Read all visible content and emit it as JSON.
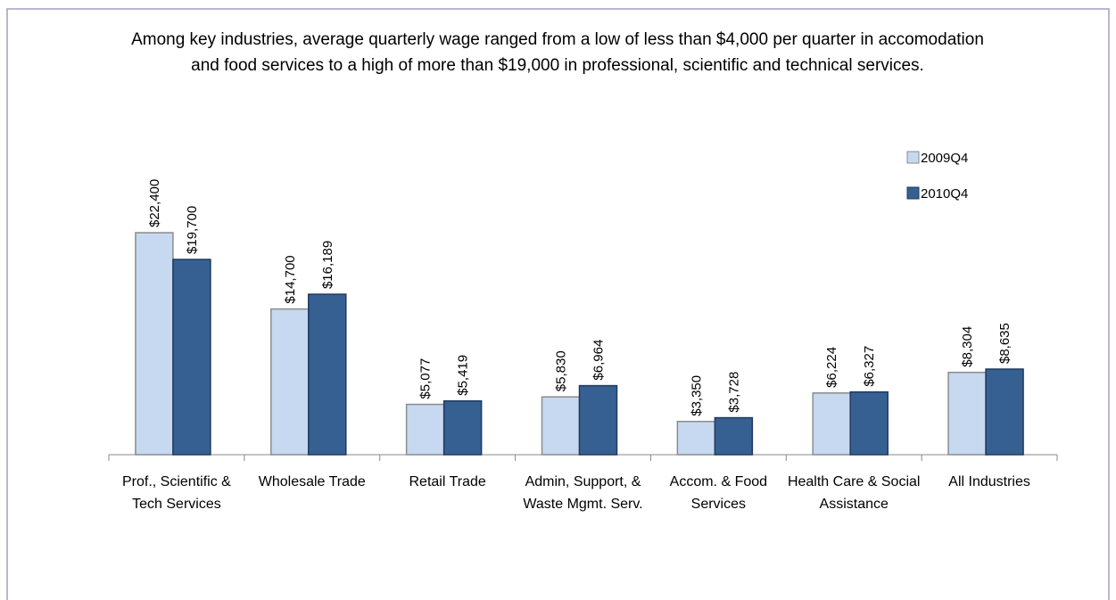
{
  "chart_data": {
    "type": "bar",
    "title": "Among key industries, average quarterly wage ranged from a low of less than $4,000 per quarter in accomodation and food services to a high of more than $19,000 in professional, scientific and technical services.",
    "categories": [
      "Prof., Scientific & Tech Services",
      "Wholesale Trade",
      "Retail Trade",
      "Admin, Support, & Waste Mgmt. Serv.",
      "Accom. & Food Services",
      "Health Care & Social Assistance",
      "All Industries"
    ],
    "series": [
      {
        "name": "2009Q4",
        "color": "#c6d9f1",
        "values": [
          22400,
          14700,
          5077,
          5830,
          3350,
          6224,
          8304
        ],
        "value_labels": [
          "$22,400",
          "$14,700",
          "$5,077",
          "$5,830",
          "$3,350",
          "$6,224",
          "$8,304"
        ]
      },
      {
        "name": "2010Q4",
        "color": "#376092",
        "values": [
          19700,
          16189,
          5419,
          6964,
          3728,
          6327,
          8635
        ],
        "value_labels": [
          "$19,700",
          "$16,189",
          "$5,419",
          "$6,964",
          "$3,728",
          "$6,327",
          "$8,635"
        ]
      }
    ],
    "legend": "top-right"
  }
}
